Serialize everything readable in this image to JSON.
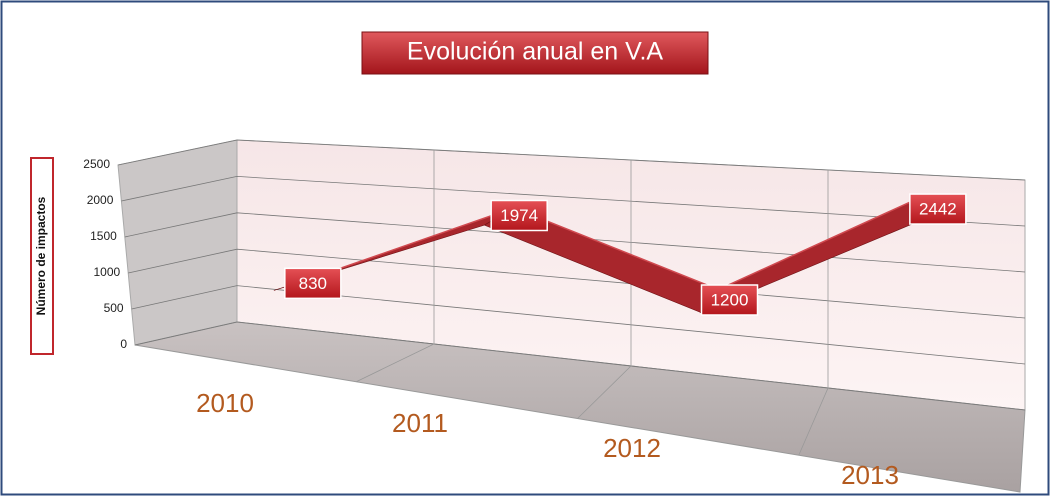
{
  "chart_data": {
    "type": "line",
    "title": "Evolución anual en V.A",
    "y_label": "Número de impactos",
    "categories": [
      "2010",
      "2011",
      "2012",
      "2013"
    ],
    "values": [
      830,
      1974,
      1200,
      2442
    ],
    "color": "#a8262c",
    "ylim": [
      0,
      2500
    ],
    "yticks": [
      0,
      500,
      1000,
      1500,
      2000,
      2500
    ],
    "grid": true,
    "data_labels": true
  }
}
